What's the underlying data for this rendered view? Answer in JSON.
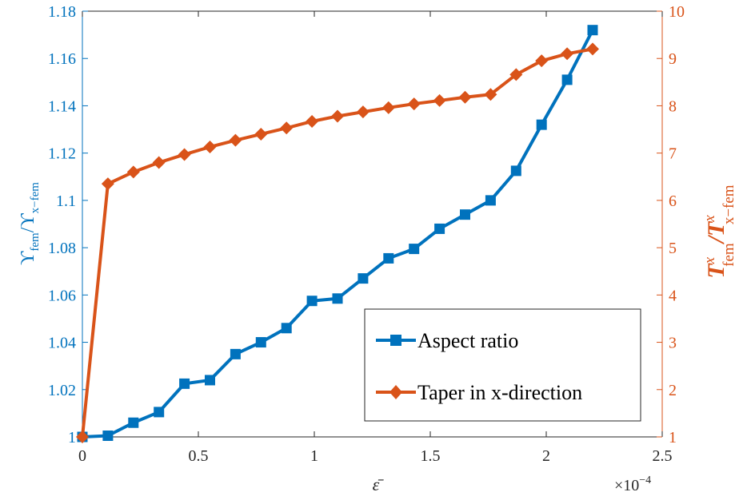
{
  "chart_data": {
    "type": "line",
    "title": "",
    "xlabel": "ε̄",
    "x_exponent_label": "×10",
    "x_exponent_power": "−4",
    "ylabel_left": {
      "main": "ϒ",
      "sub1": "fem",
      "sep": "/ϒ",
      "sub2": "x−fem"
    },
    "ylabel_right": {
      "main1": "T",
      "sup1": "x",
      "sub1": "fem",
      "sep": "/T",
      "sup2": "x",
      "sub2": "x−fem"
    },
    "xlim": [
      0,
      2.5
    ],
    "ylim_left": [
      1,
      1.18
    ],
    "ylim_right": [
      1,
      10
    ],
    "x_ticks": [
      0,
      0.5,
      1,
      1.5,
      2,
      2.5
    ],
    "x_tick_labels": [
      "0",
      "0.5",
      "1",
      "1.5",
      "2",
      "2.5"
    ],
    "y_left_ticks": [
      1,
      1.02,
      1.04,
      1.06,
      1.08,
      1.1,
      1.12,
      1.14,
      1.16,
      1.18
    ],
    "y_left_tick_labels": [
      "1",
      "1.02",
      "1.04",
      "1.06",
      "1.08",
      "1.1",
      "1.12",
      "1.14",
      "1.16",
      "1.18"
    ],
    "y_right_ticks": [
      1,
      2,
      3,
      4,
      5,
      6,
      7,
      8,
      9,
      10
    ],
    "y_right_tick_labels": [
      "1",
      "2",
      "3",
      "4",
      "5",
      "6",
      "7",
      "8",
      "9",
      "10"
    ],
    "grid": false,
    "legend_position": "bottom-right",
    "series": [
      {
        "name": "Aspect ratio",
        "axis": "left",
        "color": "#0072BD",
        "marker": "square",
        "x": [
          0,
          0.11,
          0.22,
          0.33,
          0.44,
          0.55,
          0.66,
          0.77,
          0.88,
          0.99,
          1.1,
          1.21,
          1.32,
          1.43,
          1.54,
          1.65,
          1.76,
          1.87,
          1.98,
          2.09,
          2.2
        ],
        "y": [
          1.0,
          1.0005,
          1.006,
          1.0105,
          1.0225,
          1.024,
          1.035,
          1.04,
          1.046,
          1.0575,
          1.0585,
          1.067,
          1.0755,
          1.0795,
          1.088,
          1.094,
          1.1,
          1.1125,
          1.132,
          1.151,
          1.172
        ]
      },
      {
        "name": "Taper in x-direction",
        "axis": "right",
        "color": "#D95319",
        "marker": "diamond",
        "x": [
          0,
          0.11,
          0.22,
          0.33,
          0.44,
          0.55,
          0.66,
          0.77,
          0.88,
          0.99,
          1.1,
          1.21,
          1.32,
          1.43,
          1.54,
          1.65,
          1.76,
          1.87,
          1.98,
          2.09,
          2.2
        ],
        "y": [
          1.0,
          6.35,
          6.6,
          6.8,
          6.97,
          7.13,
          7.27,
          7.4,
          7.53,
          7.67,
          7.78,
          7.87,
          7.96,
          8.04,
          8.11,
          8.18,
          8.24,
          8.66,
          8.95,
          9.1,
          9.2
        ]
      }
    ]
  }
}
